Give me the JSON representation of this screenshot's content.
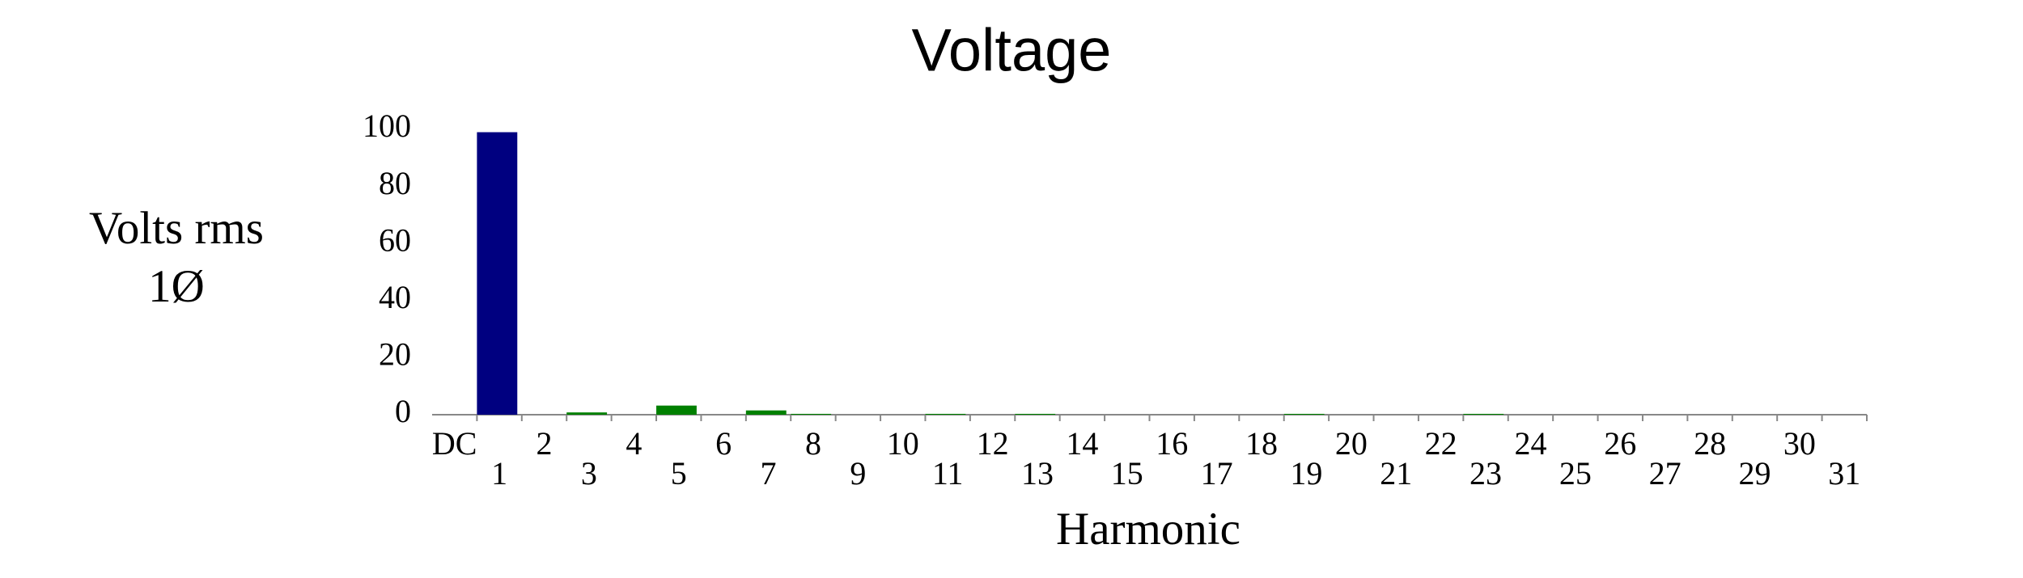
{
  "chart_data": {
    "type": "bar",
    "title": "Voltage",
    "ylabel": [
      "Volts rms",
      "1Ø"
    ],
    "xlabel": "Harmonic",
    "categories": [
      "DC",
      "1",
      "2",
      "3",
      "4",
      "5",
      "6",
      "7",
      "8",
      "9",
      "10",
      "11",
      "12",
      "13",
      "14",
      "15",
      "16",
      "17",
      "18",
      "19",
      "20",
      "21",
      "22",
      "23",
      "24",
      "25",
      "26",
      "27",
      "28",
      "29",
      "30",
      "31"
    ],
    "values": [
      0,
      99,
      0,
      0.8,
      0,
      3.2,
      0,
      1.5,
      0.3,
      0,
      0,
      0.3,
      0,
      0.3,
      0,
      0,
      0,
      0,
      0,
      0.3,
      0,
      0,
      0,
      0.3,
      0,
      0,
      0,
      0,
      0,
      0,
      0,
      0
    ],
    "colors": [
      "#008000",
      "#000080",
      "#008000",
      "#008000",
      "#008000",
      "#008000",
      "#008000",
      "#008000",
      "#008000",
      "#008000",
      "#008000",
      "#008000",
      "#008000",
      "#008000",
      "#008000",
      "#008000",
      "#008000",
      "#008000",
      "#008000",
      "#008000",
      "#008000",
      "#008000",
      "#008000",
      "#008000",
      "#008000",
      "#008000",
      "#008000",
      "#008000",
      "#008000",
      "#008000",
      "#008000",
      "#008000"
    ],
    "ylim": [
      0,
      100
    ],
    "yticks": [
      0,
      20,
      40,
      60,
      80,
      100
    ],
    "grid": false
  }
}
